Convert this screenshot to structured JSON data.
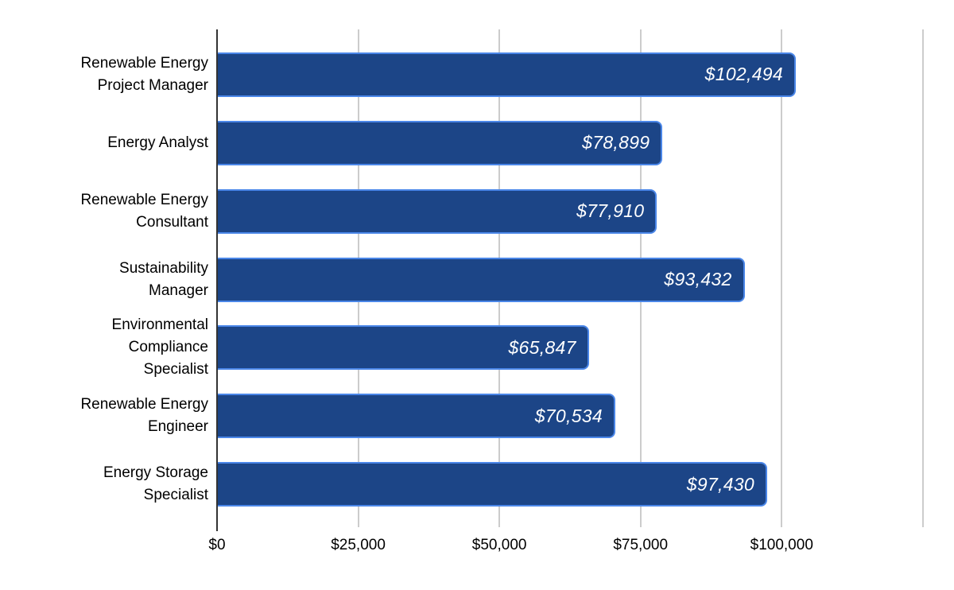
{
  "chart_data": {
    "type": "bar",
    "orientation": "horizontal",
    "title": "",
    "categories": [
      "Renewable Energy Project Manager",
      "Energy Analyst",
      "Renewable Energy Consultant",
      "Sustainability Manager",
      "Environmental Compliance Specialist",
      "Renewable Energy Engineer",
      "Energy Storage Specialist"
    ],
    "category_lines": [
      [
        "Renewable Energy",
        "Project Manager"
      ],
      [
        "Energy Analyst"
      ],
      [
        "Renewable Energy",
        "Consultant"
      ],
      [
        "Sustainability",
        "Manager"
      ],
      [
        "Environmental",
        "Compliance",
        "Specialist"
      ],
      [
        "Renewable Energy",
        "Engineer"
      ],
      [
        "Energy Storage",
        "Specialist"
      ]
    ],
    "values": [
      102494,
      78899,
      77910,
      93432,
      65847,
      70534,
      97430
    ],
    "value_labels": [
      "$102,494",
      "$78,899",
      "$77,910",
      "$93,432",
      "$65,847",
      "$70,534",
      "$97,430"
    ],
    "x_axis": {
      "ticks": [
        {
          "value": 0,
          "label": "$0"
        },
        {
          "value": 25000,
          "label": "$25,000"
        },
        {
          "value": 50000,
          "label": "$50,000"
        },
        {
          "value": 75000,
          "label": "$75,000"
        },
        {
          "value": 100000,
          "label": "$100,000"
        },
        {
          "value": 125000,
          "label": ""
        }
      ],
      "axis_max": 128400,
      "tick_interval": 25000
    },
    "grid": true,
    "legend": "none",
    "colors": {
      "bar_fill": "#1c4587",
      "bar_border": "#4a86e8",
      "gridline": "#cccccc",
      "axis_line": "#333333",
      "value_label": "#ffffff",
      "category_label": "#000000",
      "tick_label": "#000000",
      "background": "#ffffff"
    }
  }
}
